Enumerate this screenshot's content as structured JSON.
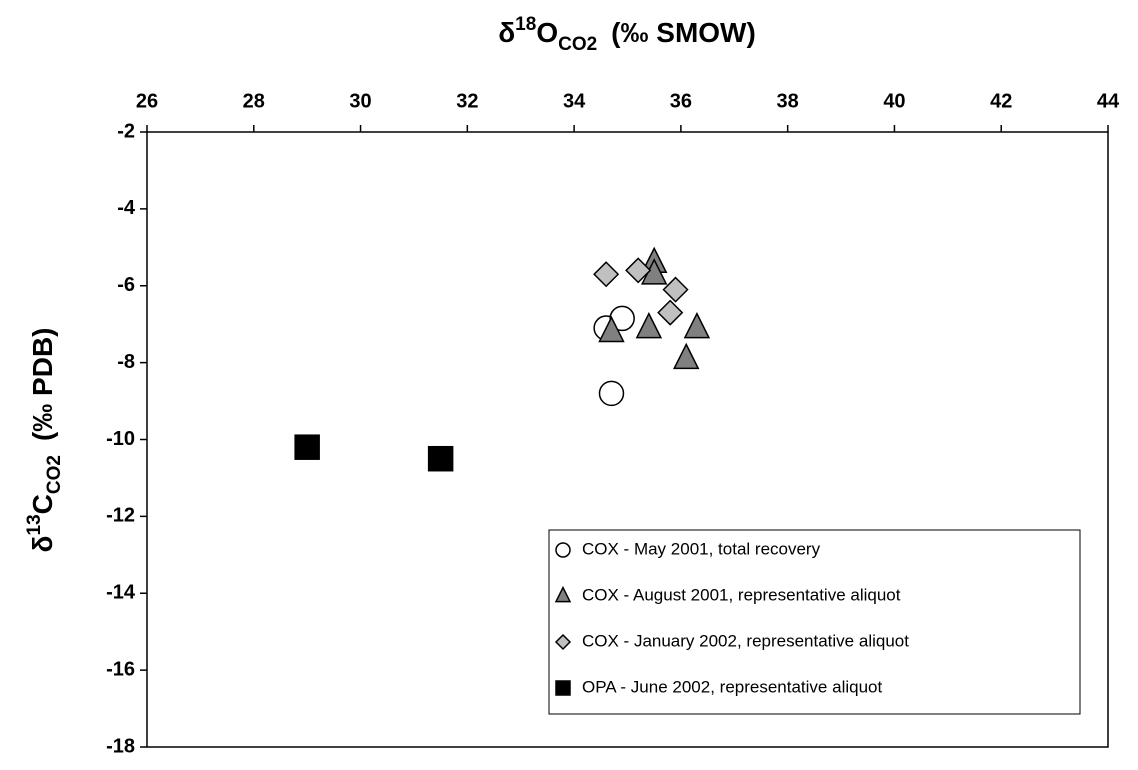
{
  "chart_data": {
    "type": "scatter",
    "x_label": {
      "prefix": "δ",
      "sup": "18",
      "main": "O",
      "sub": "CO2",
      "suffix": "(‰ SMOW)"
    },
    "y_label": {
      "prefix": "δ",
      "sup": "13",
      "main": "C",
      "sub": "CO2",
      "suffix": "(‰ PDB)"
    },
    "xlim": [
      26,
      44
    ],
    "xticks": [
      26,
      28,
      30,
      32,
      34,
      36,
      38,
      40,
      42,
      44
    ],
    "ylim": [
      -18,
      -2
    ],
    "yticks": [
      -2,
      -4,
      -6,
      -8,
      -10,
      -12,
      -14,
      -16,
      -18
    ],
    "x_axis_position": "top",
    "legend": "bottom-right",
    "series": [
      {
        "name": "COX - May 2001, total recovery",
        "marker": "circle",
        "color": "#ffffff",
        "x": [
          34.6,
          34.9,
          34.7
        ],
        "values": [
          -7.1,
          -6.85,
          -8.8
        ]
      },
      {
        "name": "COX - August 2001, representative aliquot",
        "marker": "triangle",
        "color": "#808080",
        "x": [
          34.7,
          35.4,
          36.3,
          36.1,
          35.5,
          35.5
        ],
        "values": [
          -7.2,
          -7.1,
          -7.1,
          -7.9,
          -5.4,
          -5.7
        ]
      },
      {
        "name": "COX - January 2002, representative aliquot",
        "marker": "diamond",
        "color": "#c0c0c0",
        "x": [
          34.6,
          35.2,
          35.9,
          35.8
        ],
        "values": [
          -5.7,
          -5.6,
          -6.1,
          -6.7
        ]
      },
      {
        "name": "OPA - June 2002, representative aliquot",
        "marker": "square",
        "color": "#000000",
        "x": [
          29.0,
          31.5
        ],
        "values": [
          -10.2,
          -10.5
        ]
      }
    ]
  }
}
